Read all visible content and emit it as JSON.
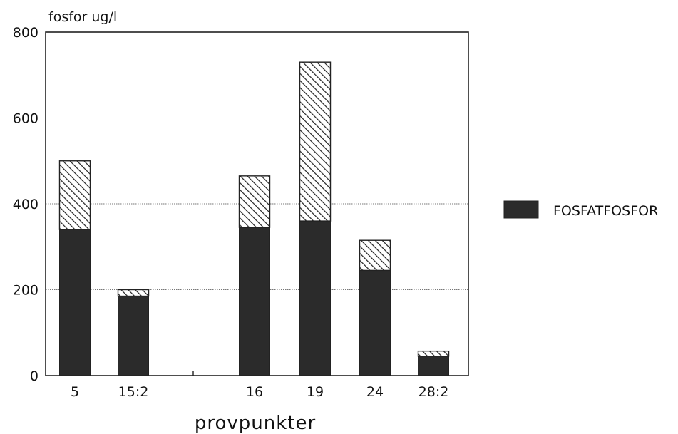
{
  "chart_data": {
    "type": "bar",
    "stacked": true,
    "ylabel": "fosfor ug/l",
    "xlabel": "provpunkter",
    "ylim": [
      0,
      800
    ],
    "yticks": [
      0,
      200,
      400,
      600,
      800
    ],
    "grid": true,
    "categories": [
      "5",
      "15:2",
      "",
      "16",
      "19",
      "24",
      "28:2"
    ],
    "series": [
      {
        "name": "FOSFATFOSFOR",
        "pattern": "solid",
        "values": [
          340,
          185,
          0,
          345,
          360,
          245,
          45
        ]
      },
      {
        "name": "",
        "pattern": "hatched",
        "values": [
          160,
          15,
          0,
          120,
          370,
          70,
          12
        ]
      }
    ],
    "legend": {
      "placement": "right",
      "entries": [
        "FOSFATFOSFOR"
      ]
    },
    "colors": {
      "bar": "#2b2b2b",
      "hatch": "#222222",
      "grid": "#777777",
      "axis": "#222222"
    }
  }
}
